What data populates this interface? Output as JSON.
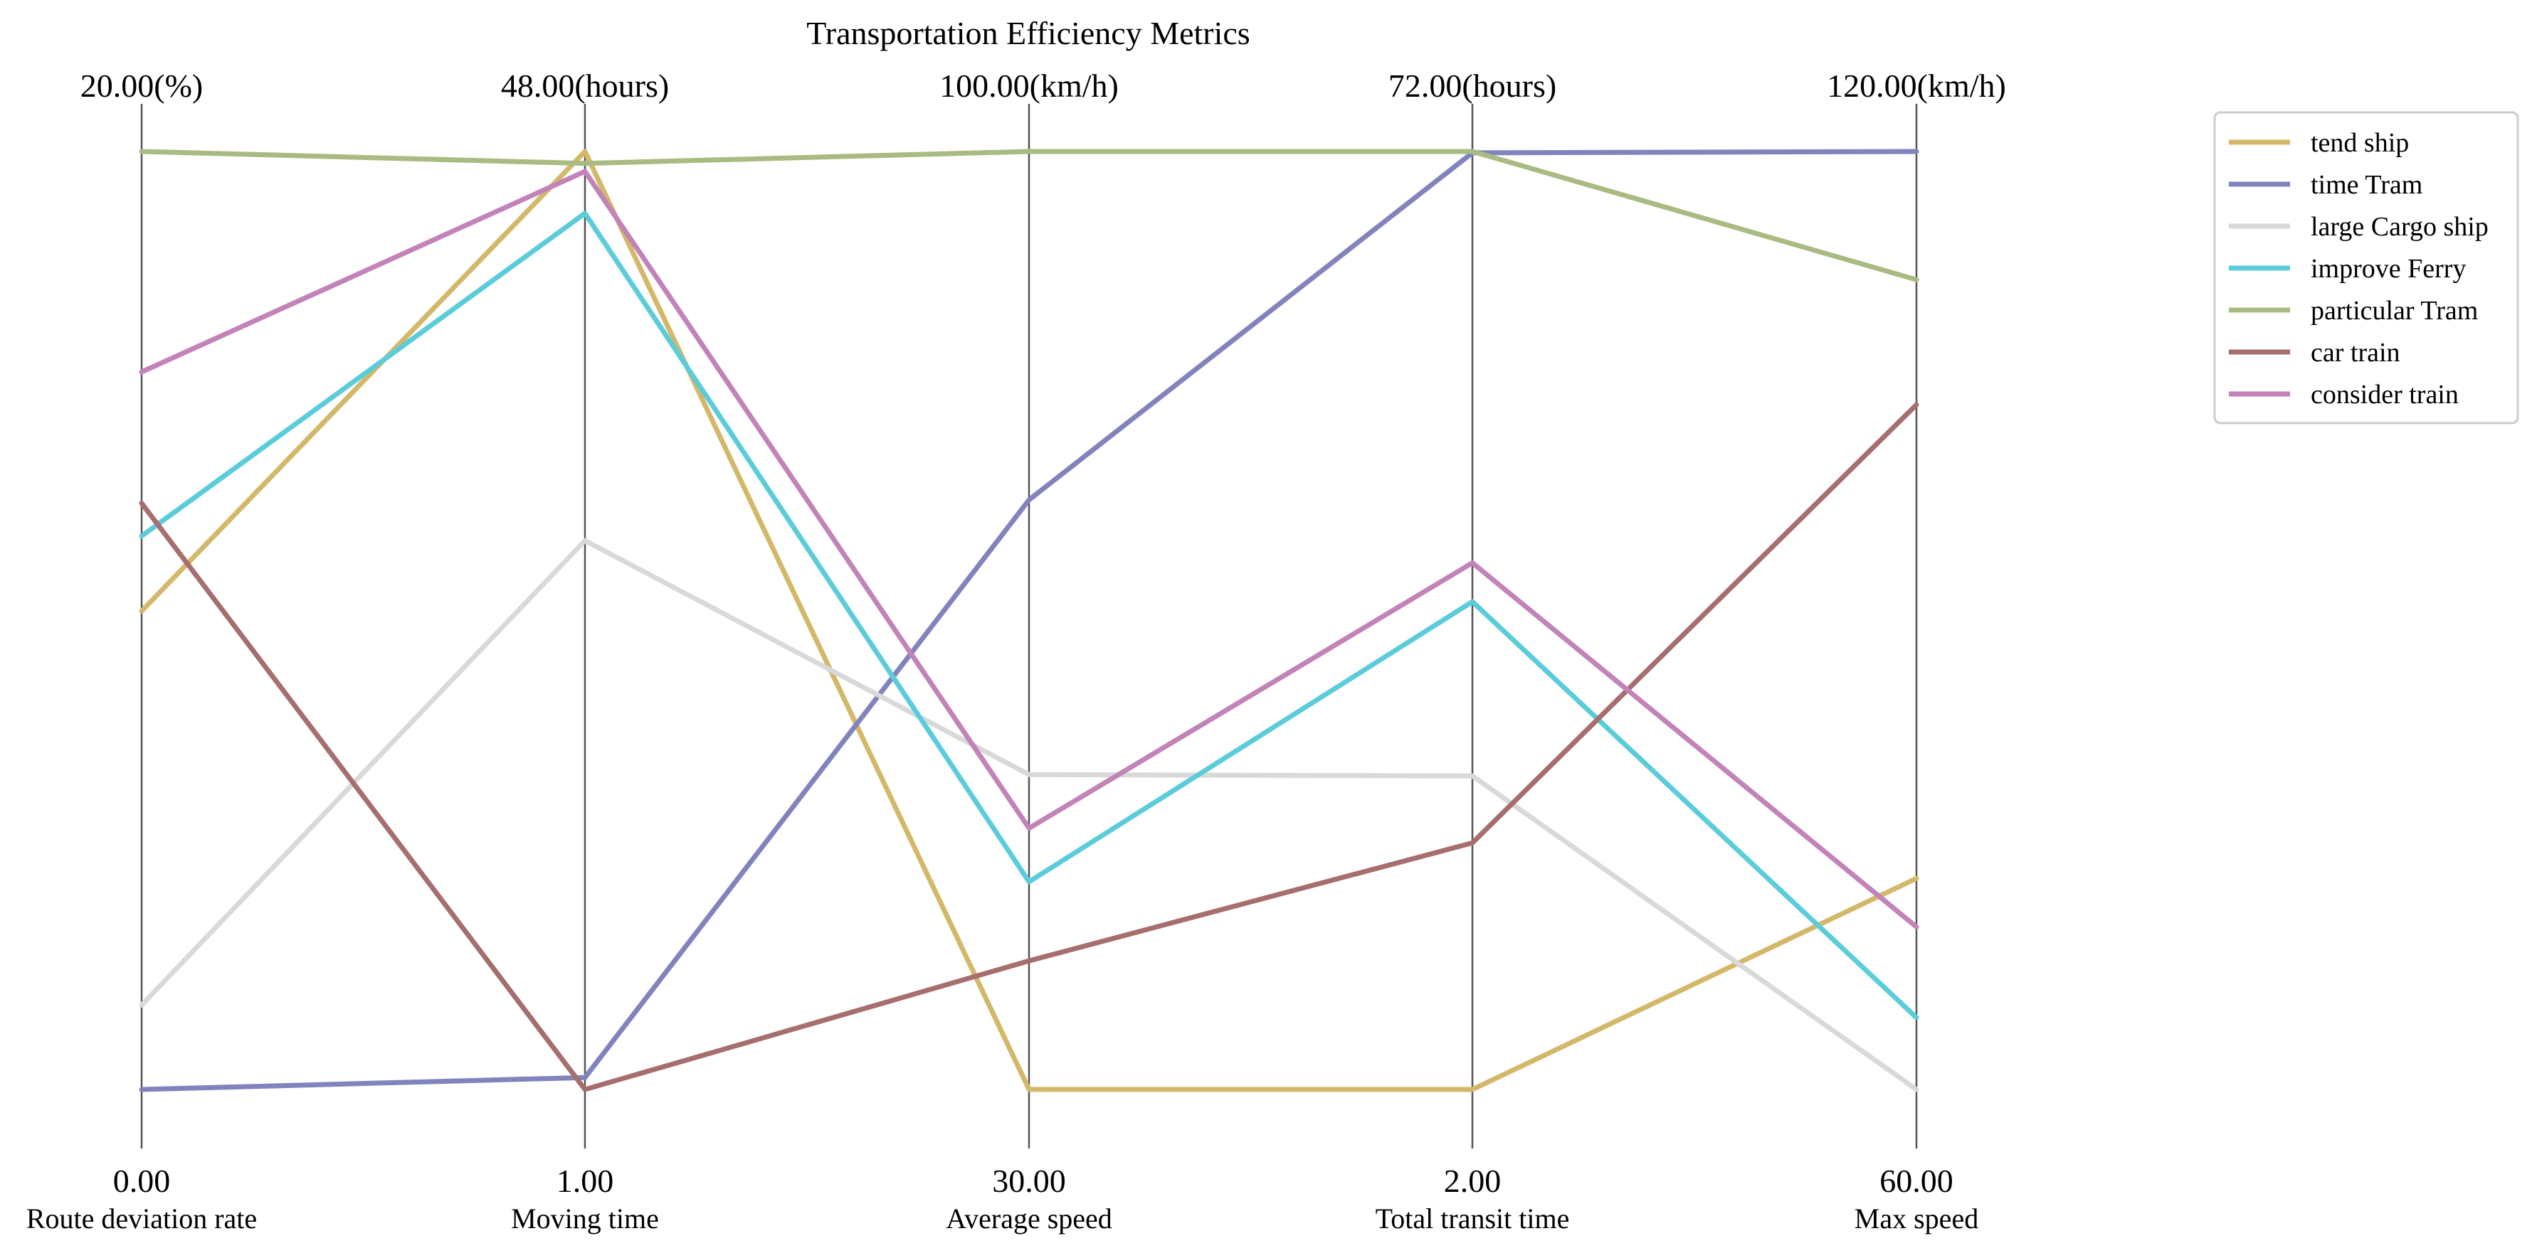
{
  "chart_data": {
    "type": "parallel_coordinates",
    "title": "Transportation Efficiency Metrics",
    "axes": [
      {
        "label": "Route deviation rate",
        "min": 0.0,
        "max": 20.0,
        "min_label": "0.00",
        "max_label": "20.00(%)"
      },
      {
        "label": "Moving time",
        "min": 1.0,
        "max": 48.0,
        "min_label": "1.00",
        "max_label": "48.00(hours)"
      },
      {
        "label": "Average speed",
        "min": 30.0,
        "max": 100.0,
        "min_label": "30.00",
        "max_label": "100.00(km/h)"
      },
      {
        "label": "Total transit time",
        "min": 2.0,
        "max": 72.0,
        "min_label": "2.00",
        "max_label": "72.00(hours)"
      },
      {
        "label": "Max speed",
        "min": 60.0,
        "max": 120.0,
        "min_label": "60.00",
        "max_label": "120.00(km/h)"
      }
    ],
    "series": [
      {
        "name": "tend ship",
        "color": "#d4b86a",
        "values": [
          10.2,
          48.0,
          30.0,
          2.0,
          73.5
        ]
      },
      {
        "name": "time Tram",
        "color": "#8184bc",
        "values": [
          0.0,
          1.6,
          74.0,
          71.9,
          120.0
        ]
      },
      {
        "name": "large Cargo ship",
        "color": "#d9d9d9",
        "values": [
          1.8,
          28.5,
          53.5,
          25.4,
          60.0
        ]
      },
      {
        "name": "improve Ferry",
        "color": "#5bccd9",
        "values": [
          11.8,
          44.9,
          45.5,
          38.4,
          64.6
        ]
      },
      {
        "name": "particular Tram",
        "color": "#a9bb82",
        "values": [
          20.0,
          47.4,
          100.0,
          72.0,
          111.8
        ]
      },
      {
        "name": "car train",
        "color": "#a66e6e",
        "values": [
          12.5,
          1.0,
          39.6,
          20.4,
          103.8
        ]
      },
      {
        "name": "consider train",
        "color": "#c283b8",
        "values": [
          15.3,
          47.0,
          49.5,
          41.3,
          70.4
        ]
      }
    ],
    "legend_position": "top-right",
    "grid": false
  }
}
